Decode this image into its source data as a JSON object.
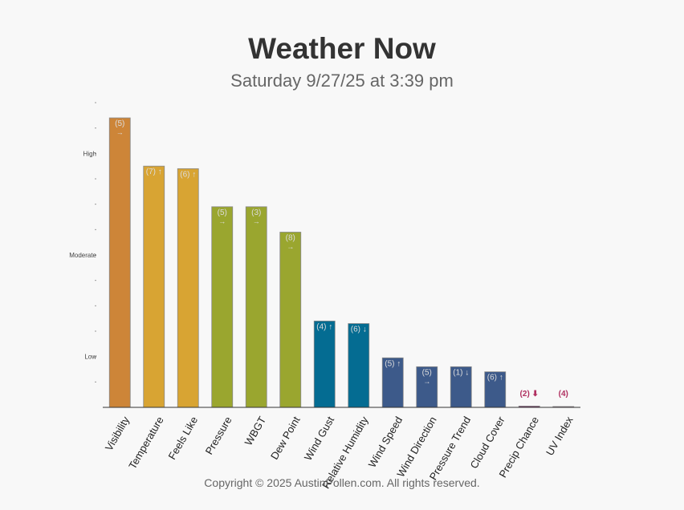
{
  "header": {
    "title": "Weather Now",
    "subtitle": "Saturday 9/27/25 at 3:39 pm"
  },
  "footer": {
    "copyright": "Copyright © 2025 AustinPollen.com.  All rights reserved."
  },
  "chart_data": {
    "type": "bar",
    "title": "Weather Now",
    "subtitle": "Saturday 9/27/25 at 3:39 pm",
    "xlabel": "",
    "ylabel": "",
    "ylim": [
      0,
      12
    ],
    "grid": false,
    "legend": "none",
    "y_tick_labels": [
      {
        "value": 2,
        "label": "Low"
      },
      {
        "value": 6,
        "label": "Moderate"
      },
      {
        "value": 10,
        "label": "High"
      }
    ],
    "categories": [
      "Visibility",
      "Temperature",
      "Feels Like",
      "Pressure",
      "WBGT",
      "Dew Point",
      "Wind Gust",
      "Relative Humidity",
      "Wind Speed",
      "Wind Direction",
      "Pressure Trend",
      "Cloud Cover",
      "Precip Chance",
      "UV Index"
    ],
    "values": [
      11.4,
      9.5,
      9.4,
      7.9,
      7.9,
      6.9,
      3.4,
      3.3,
      1.95,
      1.6,
      1.6,
      1.4,
      0.05,
      0.02
    ],
    "labels": [
      "(5)",
      "(7)",
      "(6)",
      "(5)",
      "(3)",
      "(8)",
      "(4)",
      "(6)",
      "(5)",
      "(5)",
      "(1)",
      "(6)",
      "(2)",
      "(4)"
    ],
    "trends": [
      "→",
      "↑",
      "↑",
      "→",
      "→",
      "→",
      "↑",
      "↓",
      "↑",
      "→",
      "↓",
      "↑",
      "⬇",
      ""
    ],
    "colors": [
      "#cd8538",
      "#d8a433",
      "#d8a433",
      "#9aa62f",
      "#9aa62f",
      "#9aa62f",
      "#046c92",
      "#046c92",
      "#3d5a8a",
      "#3d5a8a",
      "#3d5a8a",
      "#3d5a8a",
      "#7b3e6e",
      "#7b3e6e"
    ],
    "label_colors": {
      "bar": "#dcdcdc",
      "outside": "#b03060"
    }
  }
}
